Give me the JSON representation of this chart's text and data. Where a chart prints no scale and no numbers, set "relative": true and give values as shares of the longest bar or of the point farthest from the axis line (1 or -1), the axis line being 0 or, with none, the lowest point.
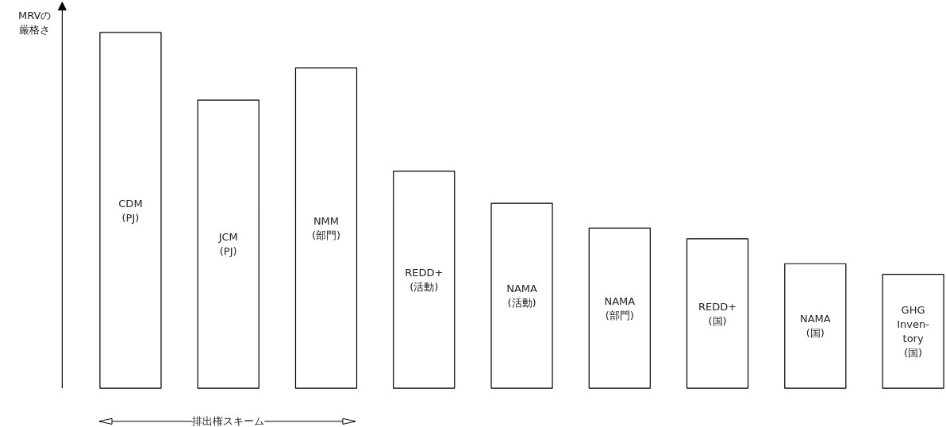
{
  "chart_data": {
    "type": "bar",
    "relative": true,
    "ylabel": "MRVの厳格さ",
    "categories": [
      "CDM\n(PJ)",
      "JCM\n(PJ)",
      "NMM\n(部門)",
      "REDD+\n(活動)",
      "NAMA\n(活動)",
      "NAMA\n(部門)",
      "REDD+\n(国)",
      "NAMA\n(国)",
      "GHG\nInven-\ntory\n(国)"
    ],
    "values": [
      1,
      0.81,
      0.9,
      0.61,
      0.52,
      0.45,
      0.42,
      0.35,
      0.32
    ],
    "color": "#ffffff",
    "annotations": [
      "排出権スキーム"
    ]
  }
}
